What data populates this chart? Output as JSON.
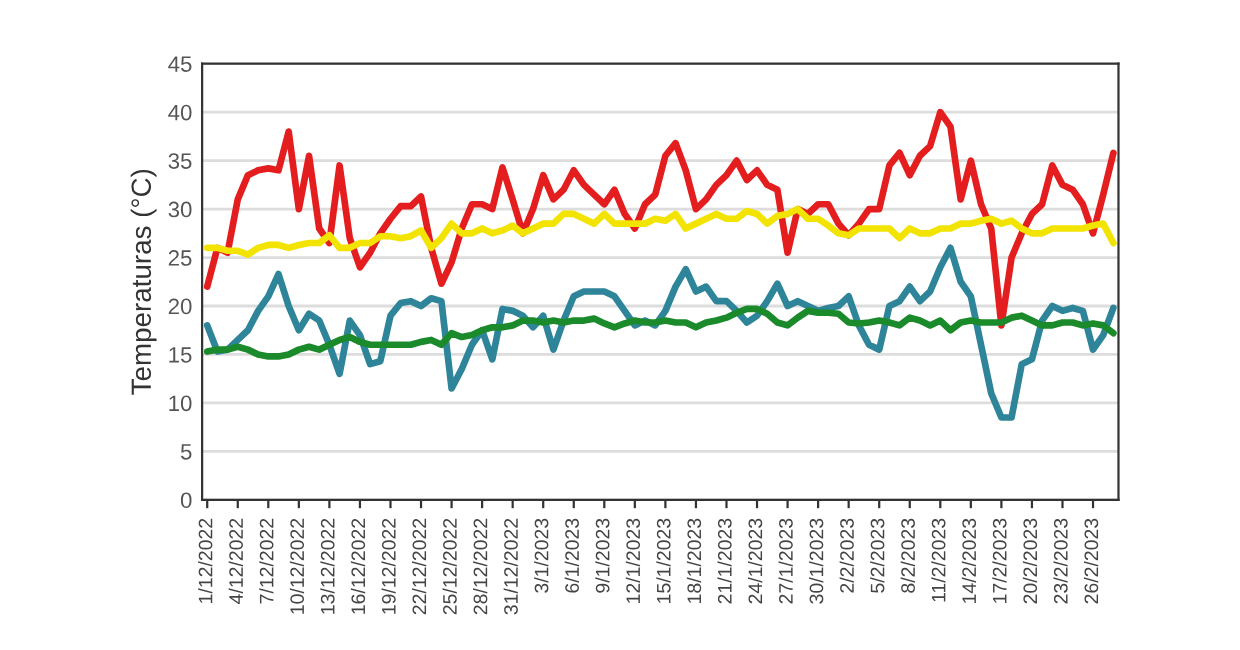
{
  "chart_data": {
    "type": "line",
    "ylabel": "Temperaturas (°C)",
    "categories": [
      "1/12/2022",
      null,
      null,
      "4/12/2022",
      null,
      null,
      "7/12/2022",
      null,
      null,
      "10/12/2022",
      null,
      null,
      "13/12/2022",
      null,
      null,
      "16/12/2022",
      null,
      null,
      "19/12/2022",
      null,
      null,
      "22/12/2022",
      null,
      null,
      "25/12/2022",
      null,
      null,
      "28/12/2022",
      null,
      null,
      "31/12/2022",
      null,
      null,
      "3/1/2023",
      null,
      null,
      "6/1/2023",
      null,
      null,
      "9/1/2023",
      null,
      null,
      "12/1/2023",
      null,
      null,
      "15/1/2023",
      null,
      null,
      "18/1/2023",
      null,
      null,
      "21/1/2023",
      null,
      null,
      "24/1/2023",
      null,
      null,
      "27/1/2023",
      null,
      null,
      "30/1/2023",
      null,
      null,
      "2/2/2023",
      null,
      null,
      "5/2/2023",
      null,
      null,
      "8/2/2023",
      null,
      null,
      "11/2/2023",
      null,
      null,
      "14/2/2023",
      null,
      null,
      "17/2/2023",
      null,
      null,
      "20/2/2023",
      null,
      null,
      "23/2/2023",
      null,
      null,
      "26/2/2023",
      null,
      null
    ],
    "series": [
      {
        "color": "#e41e1e",
        "values": [
          22,
          26,
          25.5,
          31,
          33.5,
          34,
          34.2,
          34,
          38,
          30,
          35.5,
          28,
          26.5,
          34.5,
          27,
          24,
          25.5,
          27.5,
          29,
          30.3,
          30.3,
          31.3,
          26,
          22.3,
          24.5,
          28,
          30.5,
          30.5,
          30,
          34.3,
          31,
          27.5,
          30,
          33.5,
          31,
          32,
          34,
          32.5,
          31.5,
          30.5,
          32,
          29.5,
          28,
          30.5,
          31.5,
          35.5,
          36.8,
          34,
          30,
          31,
          32.5,
          33.5,
          35,
          33,
          34,
          32.5,
          32,
          25.5,
          30,
          29.5,
          30.5,
          30.5,
          28.5,
          27.3,
          28.5,
          30,
          30,
          34.5,
          35.8,
          33.5,
          35.5,
          36.5,
          40,
          38.5,
          31,
          35,
          30.5,
          28,
          18,
          25,
          27.5,
          29.5,
          30.5,
          34.5,
          32.5,
          32,
          30.5,
          27.5,
          31.5,
          35.8
        ]
      },
      {
        "color": "#f2e400",
        "values": [
          26,
          26,
          25.7,
          25.7,
          25.3,
          26,
          26.3,
          26.3,
          26,
          26.3,
          26.5,
          26.5,
          27.3,
          26,
          26,
          26.5,
          26.5,
          27.2,
          27.2,
          27,
          27.2,
          27.8,
          26,
          27,
          28.5,
          27.5,
          27.5,
          28,
          27.5,
          27.8,
          28.3,
          27.5,
          28,
          28.5,
          28.5,
          29.5,
          29.5,
          29,
          28.5,
          29.5,
          28.5,
          28.5,
          28.5,
          28.5,
          29,
          28.8,
          29.5,
          28,
          28.5,
          29,
          29.5,
          29,
          29,
          29.8,
          29.5,
          28.5,
          29.3,
          29.5,
          30,
          29,
          29,
          28.3,
          27.5,
          27.3,
          28,
          28,
          28,
          28,
          27,
          28,
          27.5,
          27.5,
          28,
          28,
          28.5,
          28.5,
          28.8,
          29,
          28.5,
          28.8,
          28,
          27.5,
          27.5,
          28,
          28,
          28,
          28,
          28.3,
          28.5,
          26.5
        ]
      },
      {
        "color": "#2e8499",
        "values": [
          18,
          15.3,
          15.5,
          16.5,
          17.5,
          19.5,
          21,
          23.3,
          20,
          17.5,
          19.2,
          18.5,
          16,
          13,
          18.5,
          17,
          14,
          14.3,
          19,
          20.3,
          20.5,
          20,
          20.8,
          20.5,
          11.5,
          13.5,
          16,
          17.5,
          14.5,
          19.7,
          19.5,
          19,
          17.8,
          19,
          15.5,
          18.5,
          21,
          21.5,
          21.5,
          21.5,
          21,
          19.5,
          18,
          18.5,
          18,
          19.5,
          22,
          23.8,
          21.5,
          22,
          20.5,
          20.5,
          19.5,
          18.3,
          19,
          20.5,
          22.3,
          20,
          20.5,
          20,
          19.5,
          19.8,
          20,
          21,
          18,
          16,
          15.5,
          20,
          20.5,
          22,
          20.5,
          21.5,
          24,
          26,
          22.5,
          21,
          16,
          11,
          8.5,
          8.5,
          14,
          14.5,
          18.5,
          20,
          19.5,
          19.8,
          19.5,
          15.5,
          17,
          19.8
        ]
      },
      {
        "color": "#1a8a2a",
        "values": [
          15.3,
          15.5,
          15.5,
          15.8,
          15.5,
          15,
          14.8,
          14.8,
          15,
          15.5,
          15.8,
          15.5,
          16,
          16.5,
          16.8,
          16.3,
          16,
          16,
          16,
          16,
          16,
          16.3,
          16.5,
          16,
          17.2,
          16.8,
          17,
          17.5,
          17.8,
          17.8,
          18,
          18.5,
          18.5,
          18.3,
          18.5,
          18.3,
          18.5,
          18.5,
          18.7,
          18.2,
          17.8,
          18.2,
          18.5,
          18.3,
          18.3,
          18.5,
          18.3,
          18.3,
          17.8,
          18.3,
          18.5,
          18.8,
          19.3,
          19.7,
          19.7,
          19.2,
          18.3,
          18,
          18.8,
          19.5,
          19.3,
          19.3,
          19.2,
          18.3,
          18.2,
          18.3,
          18.5,
          18.3,
          18,
          18.8,
          18.5,
          18,
          18.5,
          17.5,
          18.3,
          18.5,
          18.3,
          18.3,
          18.3,
          18.8,
          19,
          18.5,
          18,
          18,
          18.3,
          18.3,
          18,
          18.2,
          18,
          17.2
        ]
      }
    ],
    "ylim": [
      0,
      45
    ],
    "yticks": [
      0,
      5,
      10,
      15,
      20,
      25,
      30,
      35,
      40,
      45
    ],
    "grid": "y",
    "legend": false,
    "marker": "none",
    "line_style": "solid"
  }
}
